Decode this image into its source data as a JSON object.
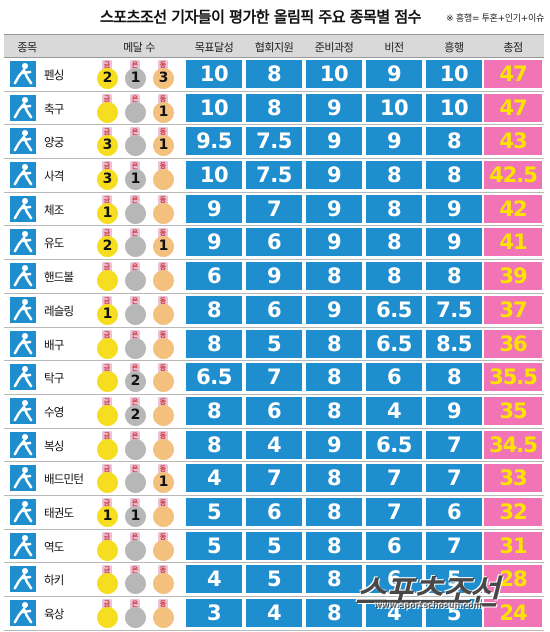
{
  "title": "스포츠조선 기자들이 평가한 올림픽 주요 종목별 점수",
  "note": "※ 흥행= 투혼+인기+이슈",
  "headers": {
    "sport": "종목",
    "medals": "메달 수",
    "goal": "목표달성",
    "federation": "협회지원",
    "preparation": "준비과정",
    "vision": "비전",
    "popularity": "흥행",
    "total": "총점"
  },
  "medal_labels": {
    "gold": "금",
    "silver": "은",
    "bronze": "동"
  },
  "rows": [
    {
      "sport": "펜싱",
      "icon": "fencing-icon",
      "gold": "2",
      "silver": "1",
      "bronze": "3",
      "goal": "10",
      "federation": "8",
      "preparation": "10",
      "vision": "9",
      "popularity": "10",
      "total": "47"
    },
    {
      "sport": "축구",
      "icon": "football-icon",
      "gold": "",
      "silver": "",
      "bronze": "1",
      "goal": "10",
      "federation": "8",
      "preparation": "9",
      "vision": "10",
      "popularity": "10",
      "total": "47"
    },
    {
      "sport": "양궁",
      "icon": "archery-icon",
      "gold": "3",
      "silver": "",
      "bronze": "1",
      "goal": "9.5",
      "federation": "7.5",
      "preparation": "9",
      "vision": "9",
      "popularity": "8",
      "total": "43"
    },
    {
      "sport": "사격",
      "icon": "shooting-icon",
      "gold": "3",
      "silver": "1",
      "bronze": "",
      "goal": "10",
      "federation": "7.5",
      "preparation": "9",
      "vision": "8",
      "popularity": "8",
      "total": "42.5"
    },
    {
      "sport": "체조",
      "icon": "gymnastics-icon",
      "gold": "1",
      "silver": "",
      "bronze": "",
      "goal": "9",
      "federation": "7",
      "preparation": "9",
      "vision": "8",
      "popularity": "9",
      "total": "42"
    },
    {
      "sport": "유도",
      "icon": "judo-icon",
      "gold": "2",
      "silver": "",
      "bronze": "1",
      "goal": "9",
      "federation": "6",
      "preparation": "9",
      "vision": "8",
      "popularity": "9",
      "total": "41"
    },
    {
      "sport": "핸드볼",
      "icon": "handball-icon",
      "gold": "",
      "silver": "",
      "bronze": "",
      "goal": "6",
      "federation": "9",
      "preparation": "8",
      "vision": "8",
      "popularity": "8",
      "total": "39"
    },
    {
      "sport": "레슬링",
      "icon": "wrestling-icon",
      "gold": "1",
      "silver": "",
      "bronze": "",
      "goal": "8",
      "federation": "6",
      "preparation": "9",
      "vision": "6.5",
      "popularity": "7.5",
      "total": "37"
    },
    {
      "sport": "배구",
      "icon": "volleyball-icon",
      "gold": "",
      "silver": "",
      "bronze": "",
      "goal": "8",
      "federation": "5",
      "preparation": "8",
      "vision": "6.5",
      "popularity": "8.5",
      "total": "36"
    },
    {
      "sport": "탁구",
      "icon": "table-tennis-icon",
      "gold": "",
      "silver": "2",
      "bronze": "",
      "goal": "6.5",
      "federation": "7",
      "preparation": "8",
      "vision": "6",
      "popularity": "8",
      "total": "35.5"
    },
    {
      "sport": "수영",
      "icon": "swimming-icon",
      "gold": "",
      "silver": "2",
      "bronze": "",
      "goal": "8",
      "federation": "6",
      "preparation": "8",
      "vision": "4",
      "popularity": "9",
      "total": "35"
    },
    {
      "sport": "복싱",
      "icon": "boxing-icon",
      "gold": "",
      "silver": "",
      "bronze": "",
      "goal": "8",
      "federation": "4",
      "preparation": "9",
      "vision": "6.5",
      "popularity": "7",
      "total": "34.5"
    },
    {
      "sport": "배드민턴",
      "icon": "badminton-icon",
      "gold": "",
      "silver": "",
      "bronze": "1",
      "goal": "4",
      "federation": "7",
      "preparation": "8",
      "vision": "7",
      "popularity": "7",
      "total": "33"
    },
    {
      "sport": "태권도",
      "icon": "taekwondo-icon",
      "gold": "1",
      "silver": "1",
      "bronze": "",
      "goal": "5",
      "federation": "6",
      "preparation": "8",
      "vision": "7",
      "popularity": "6",
      "total": "32"
    },
    {
      "sport": "역도",
      "icon": "weightlifting-icon",
      "gold": "",
      "silver": "",
      "bronze": "",
      "goal": "5",
      "federation": "5",
      "preparation": "8",
      "vision": "6",
      "popularity": "7",
      "total": "31"
    },
    {
      "sport": "하키",
      "icon": "hockey-icon",
      "gold": "",
      "silver": "",
      "bronze": "",
      "goal": "4",
      "federation": "5",
      "preparation": "8",
      "vision": "6",
      "popularity": "5",
      "total": "28"
    },
    {
      "sport": "육상",
      "icon": "athletics-icon",
      "gold": "",
      "silver": "",
      "bronze": "",
      "goal": "3",
      "federation": "4",
      "preparation": "8",
      "vision": "4",
      "popularity": "5",
      "total": "24"
    }
  ],
  "watermark": {
    "logo": "스포츠조선",
    "url": "www.sportschosun.com"
  },
  "colors": {
    "score_blue": "#1f8ecf",
    "total_pink": "#f074b6",
    "total_text": "#fce300",
    "gold": "#f6dd1f",
    "silver": "#b7b7b7",
    "bronze": "#f3c07d"
  }
}
